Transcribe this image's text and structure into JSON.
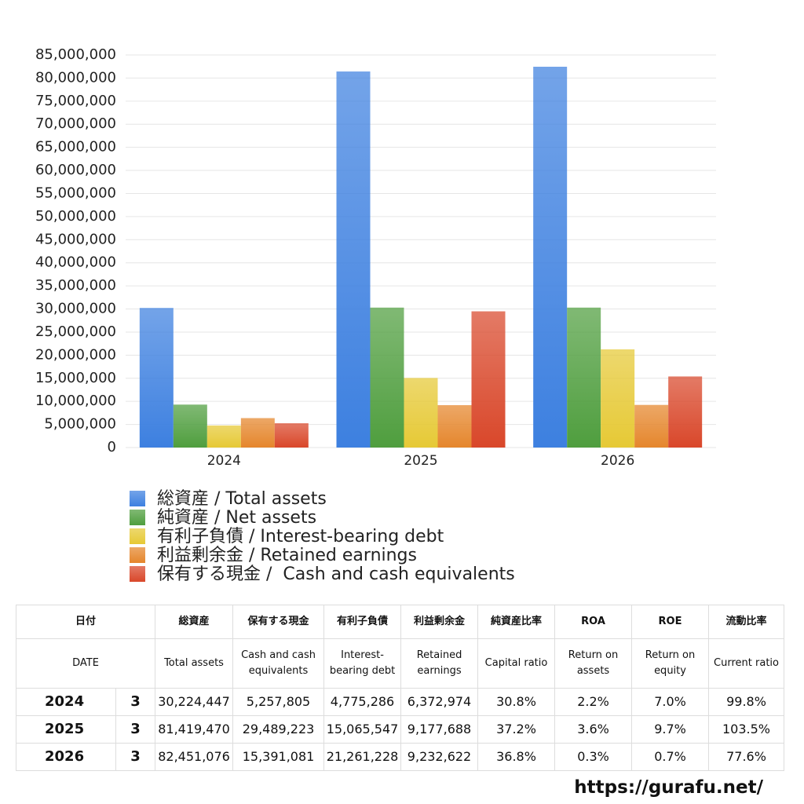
{
  "chart_data": {
    "type": "bar",
    "categories": [
      "2024",
      "2025",
      "2026"
    ],
    "series": [
      {
        "name": "総資産 / Total assets",
        "color": "#3d80e0",
        "values": [
          30224447,
          81419470,
          82451076
        ]
      },
      {
        "name": "純資産 / Net assets",
        "color": "#4f9e3e",
        "values": [
          9300000,
          30300000,
          30300000
        ]
      },
      {
        "name": "有利子負債 / Interest-bearing debt",
        "color": "#e6c935",
        "values": [
          4775286,
          15065547,
          21261228
        ]
      },
      {
        "name": "利益剰余金 / Retained earnings",
        "color": "#e5862c",
        "values": [
          6372974,
          9177688,
          9232622
        ]
      },
      {
        "name": "保有する現金 /  Cash and cash equivalents",
        "color": "#d9472a",
        "values": [
          5257805,
          29489223,
          15391081
        ]
      }
    ],
    "ylim": [
      0,
      85000000
    ],
    "yticks": [
      0,
      {
        "value": 5000000,
        "label": "5,000,000"
      },
      {
        "value": 10000000,
        "label": "10,000,000"
      },
      {
        "value": 15000000,
        "label": "15,000,000"
      },
      {
        "value": 20000000,
        "label": "20,000,000"
      },
      {
        "value": 25000000,
        "label": "25,000,000"
      },
      {
        "value": 30000000,
        "label": "30,000,000"
      },
      {
        "value": 35000000,
        "label": "35,000,000"
      },
      {
        "value": 40000000,
        "label": "40,000,000"
      },
      {
        "value": 45000000,
        "label": "45,000,000"
      },
      {
        "value": 50000000,
        "label": "50,000,000"
      },
      {
        "value": 55000000,
        "label": "55,000,000"
      },
      {
        "value": 60000000,
        "label": "60,000,000"
      },
      {
        "value": 65000000,
        "label": "65,000,000"
      },
      {
        "value": 70000000,
        "label": "70,000,000"
      },
      {
        "value": 75000000,
        "label": "75,000,000"
      },
      {
        "value": 80000000,
        "label": "80,000,000"
      },
      {
        "value": 85000000,
        "label": "85,000,000"
      }
    ],
    "grid": true
  },
  "table": {
    "header_jp": [
      "日付",
      "総資産",
      "保有する現金",
      "有利子負債",
      "利益剰余金",
      "純資産比率",
      "ROA",
      "ROE",
      "流動比率"
    ],
    "header_en": [
      "DATE",
      "Total assets",
      "Cash and cash equivalents",
      "Interest-bearing debt",
      "Retained earnings",
      "Capital ratio",
      "Return on assets",
      "Return on equity",
      "Current ratio"
    ],
    "rows": [
      [
        "2024",
        "3",
        "30,224,447",
        "5,257,805",
        "4,775,286",
        "6,372,974",
        "30.8%",
        "2.2%",
        "7.0%",
        "99.8%"
      ],
      [
        "2025",
        "3",
        "81,419,470",
        "29,489,223",
        "15,065,547",
        "9,177,688",
        "37.2%",
        "3.6%",
        "9.7%",
        "103.5%"
      ],
      [
        "2026",
        "3",
        "82,451,076",
        "15,391,081",
        "21,261,228",
        "9,232,622",
        "36.8%",
        "0.3%",
        "0.7%",
        "77.6%"
      ]
    ]
  },
  "footer": "https://gurafu.net/"
}
